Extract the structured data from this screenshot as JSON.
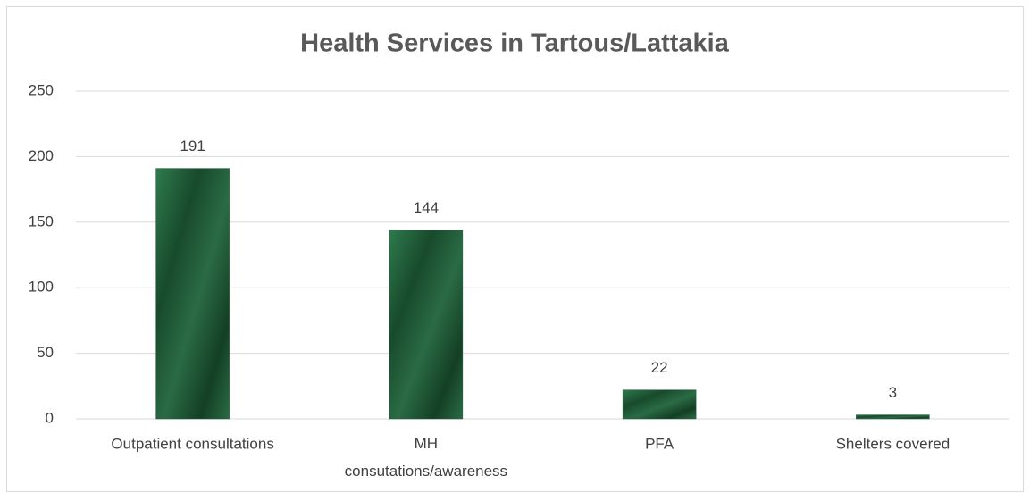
{
  "chart_data": {
    "type": "bar",
    "title": "Health Services in Tartous/Lattakia",
    "categories": [
      "Outpatient consultations",
      "MH consutations/awareness",
      "PFA",
      "Shelters covered"
    ],
    "values": [
      191,
      144,
      22,
      3
    ],
    "color": "#1e5a36",
    "ylim": [
      0,
      250
    ],
    "yticks": [
      0,
      50,
      100,
      150,
      200,
      250
    ],
    "grid": true
  }
}
